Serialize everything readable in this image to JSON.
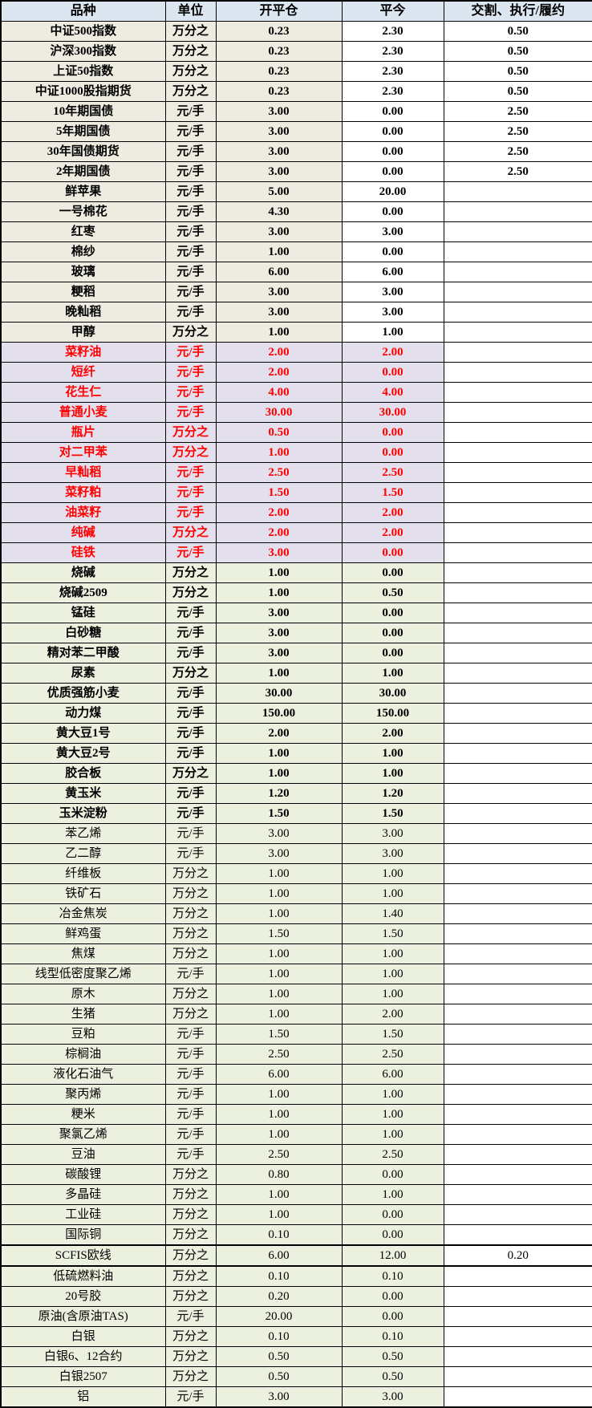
{
  "colors": {
    "header_bg": "#dce6f1",
    "tan_section_bg": "#eeece1",
    "purple_section_bg": "#e4dfec",
    "green_section_bg": "#ebf1de",
    "red_text": "#ff0000",
    "black_text": "#000000",
    "border": "#000000"
  },
  "table": {
    "header": {
      "variety": "品种",
      "unit": "单位",
      "open_close": "开平仓",
      "close_today": "平今",
      "delivery": "交割、执行/履约"
    },
    "rows": [
      {
        "name": "中证500指数",
        "unit": "万分之",
        "open": "0.23",
        "today": "2.30",
        "delivery": "0.50",
        "sec": "tan",
        "bold": true
      },
      {
        "name": "沪深300指数",
        "unit": "万分之",
        "open": "0.23",
        "today": "2.30",
        "delivery": "0.50",
        "sec": "tan",
        "bold": true
      },
      {
        "name": "上证50指数",
        "unit": "万分之",
        "open": "0.23",
        "today": "2.30",
        "delivery": "0.50",
        "sec": "tan",
        "bold": true
      },
      {
        "name": "中证1000股指期货",
        "unit": "万分之",
        "open": "0.23",
        "today": "2.30",
        "delivery": "0.50",
        "sec": "tan",
        "bold": true
      },
      {
        "name": "10年期国债",
        "unit": "元/手",
        "open": "3.00",
        "today": "0.00",
        "delivery": "2.50",
        "sec": "tan",
        "bold": true
      },
      {
        "name": "5年期国债",
        "unit": "元/手",
        "open": "3.00",
        "today": "0.00",
        "delivery": "2.50",
        "sec": "tan",
        "bold": true
      },
      {
        "name": "30年国债期货",
        "unit": "元/手",
        "open": "3.00",
        "today": "0.00",
        "delivery": "2.50",
        "sec": "tan",
        "bold": true
      },
      {
        "name": "2年期国债",
        "unit": "元/手",
        "open": "3.00",
        "today": "0.00",
        "delivery": "2.50",
        "sec": "tan",
        "bold": true
      },
      {
        "name": "鲜苹果",
        "unit": "元/手",
        "open": "5.00",
        "today": "20.00",
        "delivery": "",
        "sec": "tan",
        "bold": true
      },
      {
        "name": "一号棉花",
        "unit": "元/手",
        "open": "4.30",
        "today": "0.00",
        "delivery": "",
        "sec": "tan",
        "bold": true
      },
      {
        "name": "红枣",
        "unit": "元/手",
        "open": "3.00",
        "today": "3.00",
        "delivery": "",
        "sec": "tan",
        "bold": true
      },
      {
        "name": "棉纱",
        "unit": "元/手",
        "open": "1.00",
        "today": "0.00",
        "delivery": "",
        "sec": "tan",
        "bold": true
      },
      {
        "name": "玻璃",
        "unit": "元/手",
        "open": "6.00",
        "today": "6.00",
        "delivery": "",
        "sec": "tan",
        "bold": true
      },
      {
        "name": "粳稻",
        "unit": "元/手",
        "open": "3.00",
        "today": "3.00",
        "delivery": "",
        "sec": "tan",
        "bold": true
      },
      {
        "name": "晚籼稻",
        "unit": "元/手",
        "open": "3.00",
        "today": "3.00",
        "delivery": "",
        "sec": "tan",
        "bold": true
      },
      {
        "name": "甲醇",
        "unit": "万分之",
        "open": "1.00",
        "today": "1.00",
        "delivery": "",
        "sec": "tan",
        "bold": true
      },
      {
        "name": "菜籽油",
        "unit": "元/手",
        "open": "2.00",
        "today": "2.00",
        "delivery": "",
        "sec": "purple",
        "bold": true
      },
      {
        "name": "短纤",
        "unit": "元/手",
        "open": "2.00",
        "today": "0.00",
        "delivery": "",
        "sec": "purple",
        "bold": true
      },
      {
        "name": "花生仁",
        "unit": "元/手",
        "open": "4.00",
        "today": "4.00",
        "delivery": "",
        "sec": "purple",
        "bold": true
      },
      {
        "name": "普通小麦",
        "unit": "元/手",
        "open": "30.00",
        "today": "30.00",
        "delivery": "",
        "sec": "purple",
        "bold": true
      },
      {
        "name": "瓶片",
        "unit": "万分之",
        "open": "0.50",
        "today": "0.00",
        "delivery": "",
        "sec": "purple",
        "bold": true
      },
      {
        "name": "对二甲苯",
        "unit": "万分之",
        "open": "1.00",
        "today": "0.00",
        "delivery": "",
        "sec": "purple",
        "bold": true
      },
      {
        "name": "早籼稻",
        "unit": "元/手",
        "open": "2.50",
        "today": "2.50",
        "delivery": "",
        "sec": "purple",
        "bold": true
      },
      {
        "name": "菜籽粕",
        "unit": "元/手",
        "open": "1.50",
        "today": "1.50",
        "delivery": "",
        "sec": "purple",
        "bold": true
      },
      {
        "name": "油菜籽",
        "unit": "元/手",
        "open": "2.00",
        "today": "2.00",
        "delivery": "",
        "sec": "purple",
        "bold": true
      },
      {
        "name": "纯碱",
        "unit": "万分之",
        "open": "2.00",
        "today": "2.00",
        "delivery": "",
        "sec": "purple",
        "bold": true
      },
      {
        "name": "硅铁",
        "unit": "元/手",
        "open": "3.00",
        "today": "0.00",
        "delivery": "",
        "sec": "purple",
        "bold": true
      },
      {
        "name": "烧碱",
        "unit": "万分之",
        "open": "1.00",
        "today": "0.00",
        "delivery": "",
        "sec": "green",
        "bold": true
      },
      {
        "name": "烧碱2509",
        "unit": "万分之",
        "open": "1.00",
        "today": "0.50",
        "delivery": "",
        "sec": "green",
        "bold": true
      },
      {
        "name": "锰硅",
        "unit": "元/手",
        "open": "3.00",
        "today": "0.00",
        "delivery": "",
        "sec": "green",
        "bold": true
      },
      {
        "name": "白砂糖",
        "unit": "元/手",
        "open": "3.00",
        "today": "0.00",
        "delivery": "",
        "sec": "green",
        "bold": true
      },
      {
        "name": "精对苯二甲酸",
        "unit": "元/手",
        "open": "3.00",
        "today": "0.00",
        "delivery": "",
        "sec": "green",
        "bold": true
      },
      {
        "name": "尿素",
        "unit": "万分之",
        "open": "1.00",
        "today": "1.00",
        "delivery": "",
        "sec": "green",
        "bold": true
      },
      {
        "name": "优质强筋小麦",
        "unit": "元/手",
        "open": "30.00",
        "today": "30.00",
        "delivery": "",
        "sec": "green",
        "bold": true
      },
      {
        "name": "动力煤",
        "unit": "元/手",
        "open": "150.00",
        "today": "150.00",
        "delivery": "",
        "sec": "green",
        "bold": true
      },
      {
        "name": "黄大豆1号",
        "unit": "元/手",
        "open": "2.00",
        "today": "2.00",
        "delivery": "",
        "sec": "green",
        "bold": true
      },
      {
        "name": "黄大豆2号",
        "unit": "元/手",
        "open": "1.00",
        "today": "1.00",
        "delivery": "",
        "sec": "green",
        "bold": true
      },
      {
        "name": "胶合板",
        "unit": "万分之",
        "open": "1.00",
        "today": "1.00",
        "delivery": "",
        "sec": "green",
        "bold": true
      },
      {
        "name": "黄玉米",
        "unit": "元/手",
        "open": "1.20",
        "today": "1.20",
        "delivery": "",
        "sec": "green",
        "bold": true
      },
      {
        "name": "玉米淀粉",
        "unit": "元/手",
        "open": "1.50",
        "today": "1.50",
        "delivery": "",
        "sec": "green",
        "bold": true
      },
      {
        "name": "苯乙烯",
        "unit": "元/手",
        "open": "3.00",
        "today": "3.00",
        "delivery": "",
        "sec": "green",
        "bold": false
      },
      {
        "name": "乙二醇",
        "unit": "元/手",
        "open": "3.00",
        "today": "3.00",
        "delivery": "",
        "sec": "green",
        "bold": false
      },
      {
        "name": "纤维板",
        "unit": "万分之",
        "open": "1.00",
        "today": "1.00",
        "delivery": "",
        "sec": "green",
        "bold": false
      },
      {
        "name": "铁矿石",
        "unit": "万分之",
        "open": "1.00",
        "today": "1.00",
        "delivery": "",
        "sec": "green",
        "bold": false
      },
      {
        "name": "冶金焦炭",
        "unit": "万分之",
        "open": "1.00",
        "today": "1.40",
        "delivery": "",
        "sec": "green",
        "bold": false
      },
      {
        "name": "鲜鸡蛋",
        "unit": "万分之",
        "open": "1.50",
        "today": "1.50",
        "delivery": "",
        "sec": "green",
        "bold": false
      },
      {
        "name": "焦煤",
        "unit": "万分之",
        "open": "1.00",
        "today": "1.00",
        "delivery": "",
        "sec": "green",
        "bold": false
      },
      {
        "name": "线型低密度聚乙烯",
        "unit": "元/手",
        "open": "1.00",
        "today": "1.00",
        "delivery": "",
        "sec": "green",
        "bold": false
      },
      {
        "name": "原木",
        "unit": "万分之",
        "open": "1.00",
        "today": "1.00",
        "delivery": "",
        "sec": "green",
        "bold": false
      },
      {
        "name": "生猪",
        "unit": "万分之",
        "open": "1.00",
        "today": "2.00",
        "delivery": "",
        "sec": "green",
        "bold": false
      },
      {
        "name": "豆粕",
        "unit": "元/手",
        "open": "1.50",
        "today": "1.50",
        "delivery": "",
        "sec": "green",
        "bold": false
      },
      {
        "name": "棕榈油",
        "unit": "元/手",
        "open": "2.50",
        "today": "2.50",
        "delivery": "",
        "sec": "green",
        "bold": false
      },
      {
        "name": "液化石油气",
        "unit": "元/手",
        "open": "6.00",
        "today": "6.00",
        "delivery": "",
        "sec": "green",
        "bold": false
      },
      {
        "name": "聚丙烯",
        "unit": "元/手",
        "open": "1.00",
        "today": "1.00",
        "delivery": "",
        "sec": "green",
        "bold": false
      },
      {
        "name": "粳米",
        "unit": "元/手",
        "open": "1.00",
        "today": "1.00",
        "delivery": "",
        "sec": "green",
        "bold": false
      },
      {
        "name": "聚氯乙烯",
        "unit": "元/手",
        "open": "1.00",
        "today": "1.00",
        "delivery": "",
        "sec": "green",
        "bold": false
      },
      {
        "name": "豆油",
        "unit": "元/手",
        "open": "2.50",
        "today": "2.50",
        "delivery": "",
        "sec": "green",
        "bold": false
      },
      {
        "name": "碳酸锂",
        "unit": "万分之",
        "open": "0.80",
        "today": "0.00",
        "delivery": "",
        "sec": "green",
        "bold": false
      },
      {
        "name": "多晶硅",
        "unit": "万分之",
        "open": "1.00",
        "today": "1.00",
        "delivery": "",
        "sec": "green",
        "bold": false
      },
      {
        "name": "工业硅",
        "unit": "万分之",
        "open": "1.00",
        "today": "0.00",
        "delivery": "",
        "sec": "green",
        "bold": false
      },
      {
        "name": "国际铜",
        "unit": "万分之",
        "open": "0.10",
        "today": "0.00",
        "delivery": "",
        "sec": "green",
        "bold": false
      },
      {
        "name": "SCFIS欧线",
        "unit": "万分之",
        "open": "6.00",
        "today": "12.00",
        "delivery": "0.20",
        "sec": "green",
        "bold": false,
        "thick": true
      },
      {
        "name": "低硫燃料油",
        "unit": "万分之",
        "open": "0.10",
        "today": "0.10",
        "delivery": "",
        "sec": "green",
        "bold": false
      },
      {
        "name": "20号胶",
        "unit": "万分之",
        "open": "0.20",
        "today": "0.00",
        "delivery": "",
        "sec": "green",
        "bold": false
      },
      {
        "name": "原油(含原油TAS)",
        "unit": "元/手",
        "open": "20.00",
        "today": "0.00",
        "delivery": "",
        "sec": "green",
        "bold": false
      },
      {
        "name": "白银",
        "unit": "万分之",
        "open": "0.10",
        "today": "0.10",
        "delivery": "",
        "sec": "green",
        "bold": false
      },
      {
        "name": "白银6、12合约",
        "unit": "万分之",
        "open": "0.50",
        "today": "0.50",
        "delivery": "",
        "sec": "green",
        "bold": false
      },
      {
        "name": "白银2507",
        "unit": "万分之",
        "open": "0.50",
        "today": "0.50",
        "delivery": "",
        "sec": "green",
        "bold": false
      },
      {
        "name": "铝",
        "unit": "元/手",
        "open": "3.00",
        "today": "3.00",
        "delivery": "",
        "sec": "green",
        "bold": false
      }
    ]
  }
}
